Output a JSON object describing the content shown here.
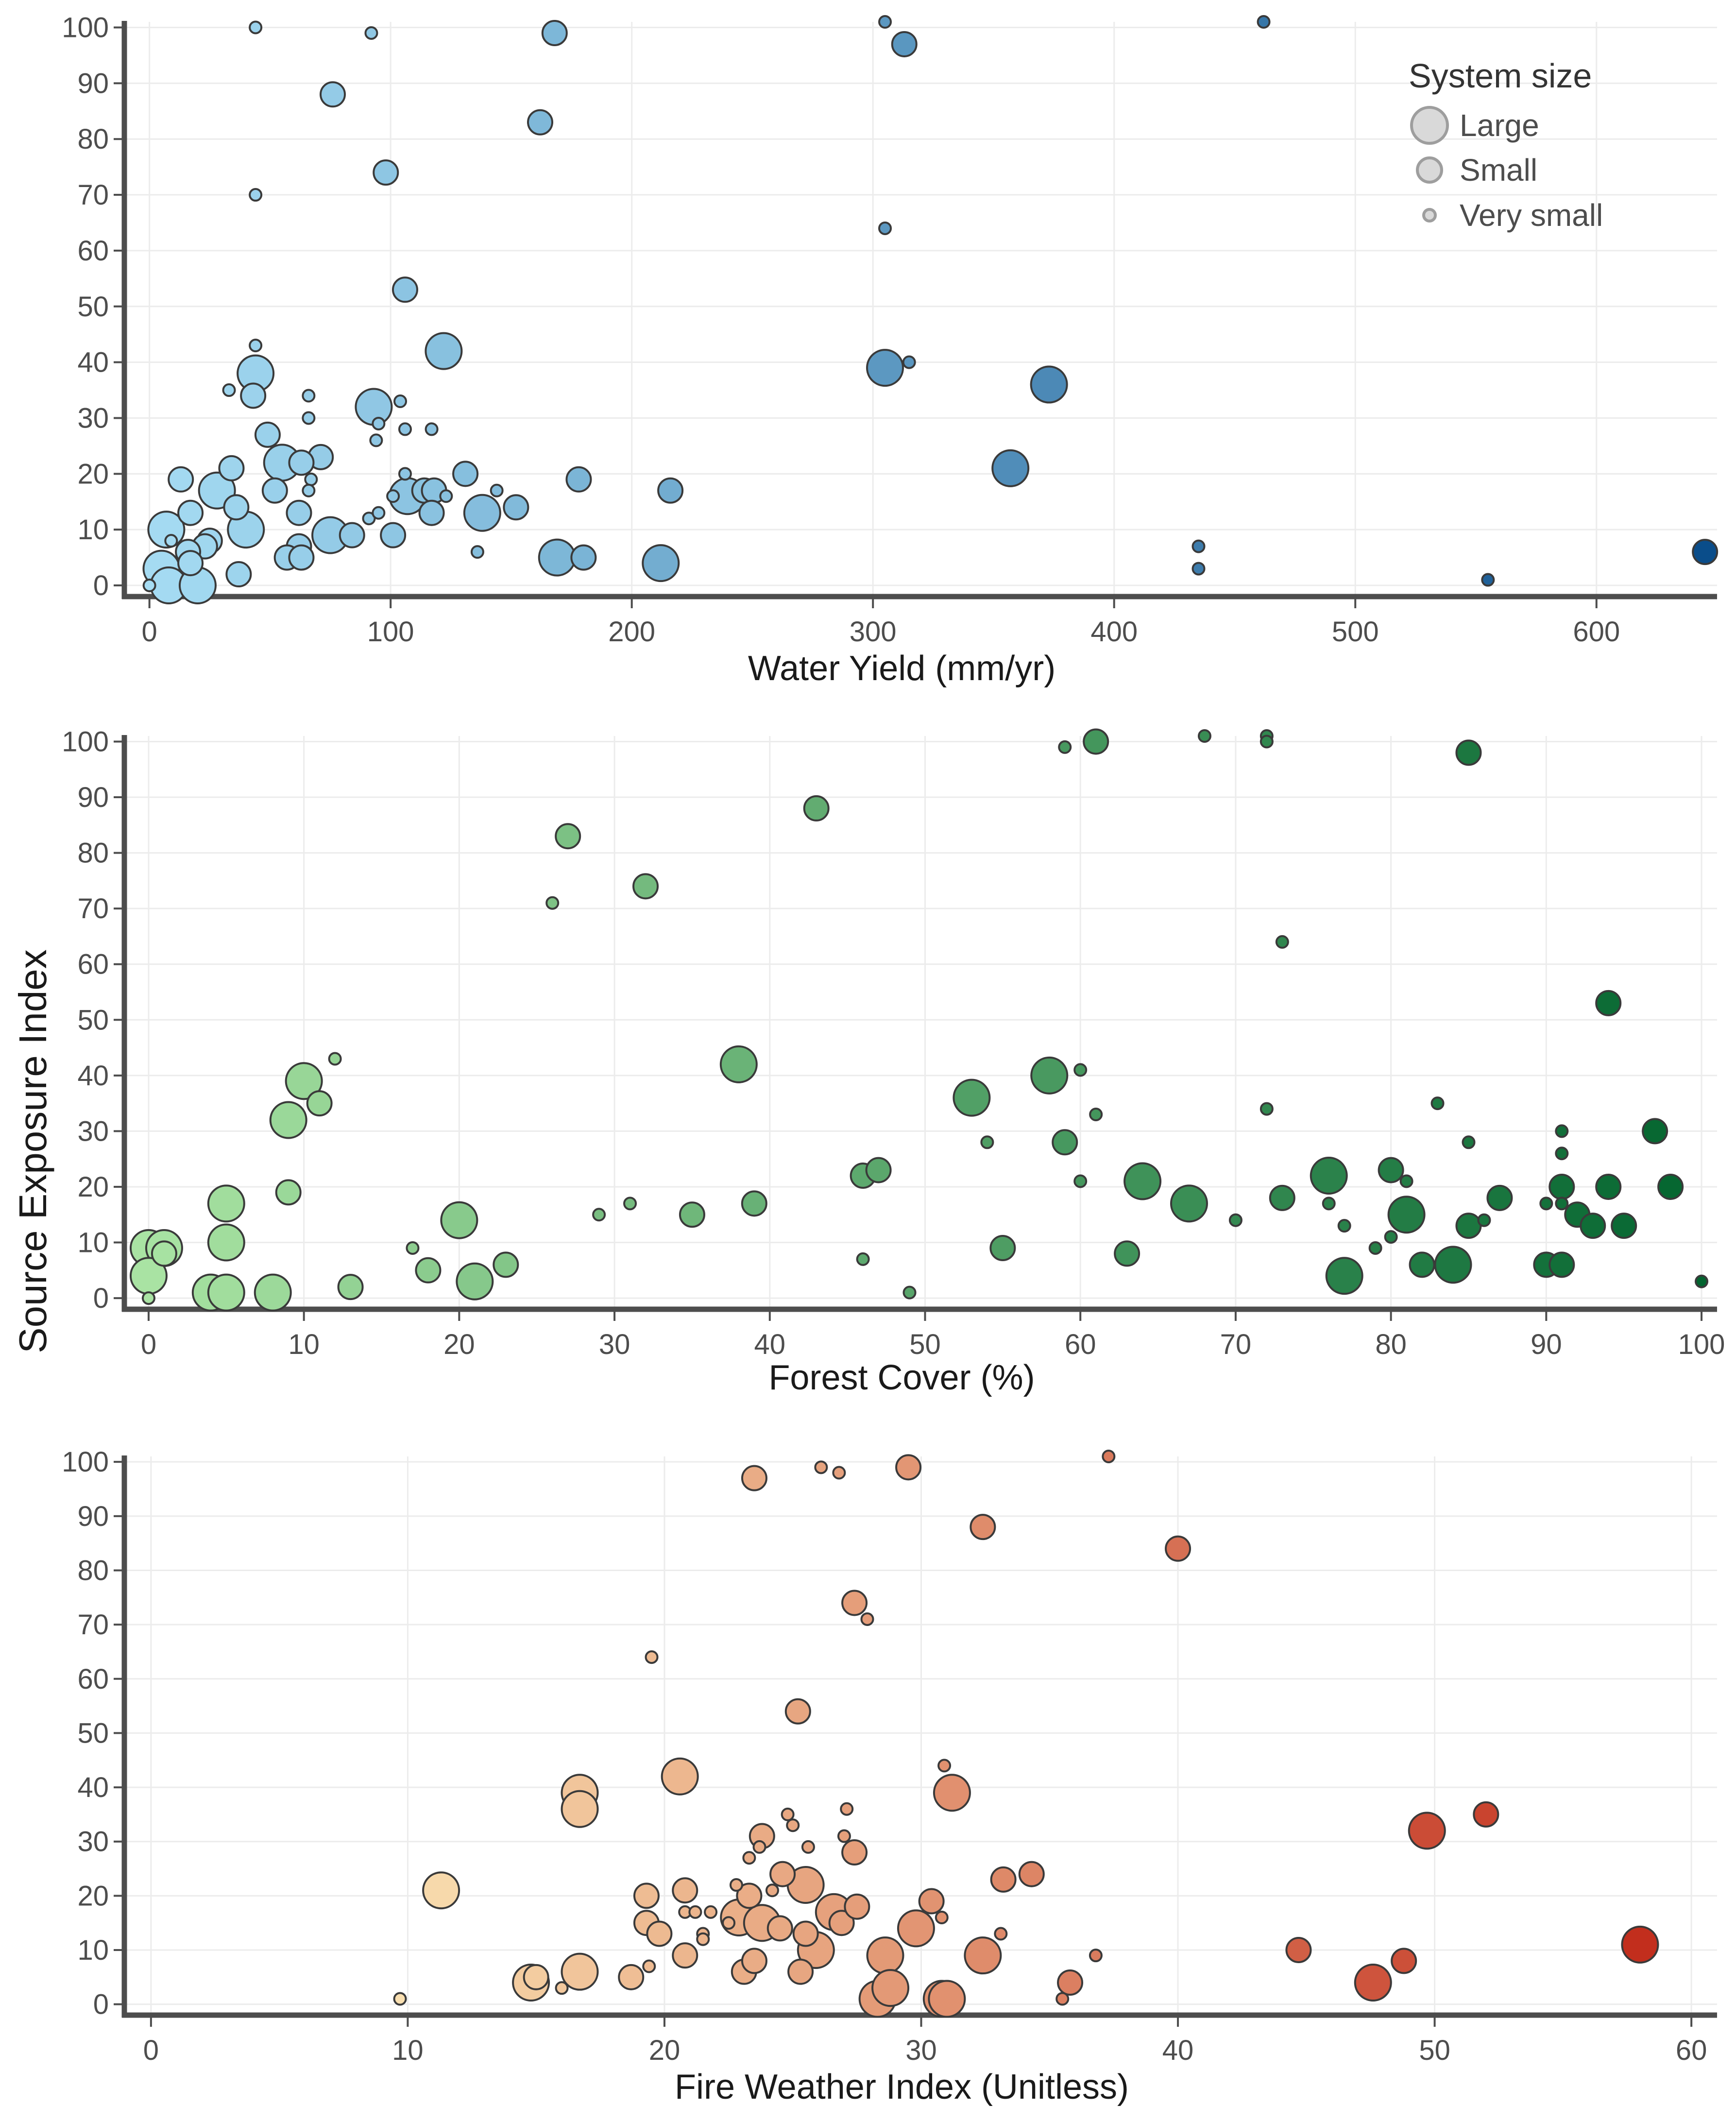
{
  "y_axis_label": "Source Exposure Index",
  "legend": {
    "title": "System size",
    "items": [
      {
        "label": "Large",
        "size": "L"
      },
      {
        "label": "Small",
        "size": "S"
      },
      {
        "label": "Very small",
        "size": "V"
      }
    ],
    "fill": "#d9d9d9",
    "stroke": "#9e9e9e"
  },
  "chart_data": [
    {
      "type": "scatter",
      "title": "",
      "xlabel": "Water Yield (mm/yr)",
      "ylabel": "Source Exposure Index",
      "xlim": [
        -10,
        650
      ],
      "ylim": [
        -2,
        101
      ],
      "xticks": [
        0,
        100,
        200,
        300,
        400,
        500,
        600
      ],
      "yticks": [
        0,
        10,
        20,
        30,
        40,
        50,
        60,
        70,
        80,
        90,
        100
      ],
      "color_scale": {
        "low": "#a6dcf3",
        "high": "#0a4d8a",
        "by": "x"
      },
      "points": [
        [
          44,
          100,
          "V"
        ],
        [
          92,
          99,
          "V"
        ],
        [
          168,
          99,
          "S"
        ],
        [
          76,
          88,
          "S"
        ],
        [
          162,
          83,
          "S"
        ],
        [
          98,
          74,
          "S"
        ],
        [
          44,
          70,
          "V"
        ],
        [
          106,
          53,
          "S"
        ],
        [
          44,
          43,
          "V"
        ],
        [
          122,
          42,
          "L"
        ],
        [
          44,
          38,
          "L"
        ],
        [
          66,
          34,
          "V"
        ],
        [
          43,
          34,
          "S"
        ],
        [
          33,
          35,
          "V"
        ],
        [
          93,
          32,
          "L"
        ],
        [
          104,
          33,
          "V"
        ],
        [
          66,
          30,
          "V"
        ],
        [
          95,
          29,
          "V"
        ],
        [
          49,
          27,
          "S"
        ],
        [
          106,
          28,
          "V"
        ],
        [
          117,
          28,
          "V"
        ],
        [
          94,
          26,
          "V"
        ],
        [
          71,
          23,
          "S"
        ],
        [
          63,
          22,
          "S"
        ],
        [
          55,
          22,
          "L"
        ],
        [
          34,
          21,
          "S"
        ],
        [
          106,
          20,
          "V"
        ],
        [
          131,
          20,
          "S"
        ],
        [
          13,
          19,
          "S"
        ],
        [
          67,
          19,
          "V"
        ],
        [
          178,
          19,
          "S"
        ],
        [
          28,
          17,
          "L"
        ],
        [
          52,
          17,
          "S"
        ],
        [
          66,
          17,
          "V"
        ],
        [
          101,
          16,
          "V"
        ],
        [
          107,
          16,
          "L"
        ],
        [
          114,
          17,
          "S"
        ],
        [
          118,
          17,
          "S"
        ],
        [
          123,
          16,
          "V"
        ],
        [
          144,
          17,
          "V"
        ],
        [
          216,
          17,
          "S"
        ],
        [
          36,
          14,
          "S"
        ],
        [
          17,
          13,
          "S"
        ],
        [
          62,
          13,
          "S"
        ],
        [
          91,
          12,
          "V"
        ],
        [
          95,
          13,
          "V"
        ],
        [
          117,
          13,
          "S"
        ],
        [
          138,
          13,
          "L"
        ],
        [
          152,
          14,
          "S"
        ],
        [
          7,
          10,
          "L"
        ],
        [
          40,
          10,
          "L"
        ],
        [
          25,
          8,
          "S"
        ],
        [
          23,
          7,
          "S"
        ],
        [
          62,
          7,
          "S"
        ],
        [
          75,
          9,
          "L"
        ],
        [
          84,
          9,
          "S"
        ],
        [
          101,
          9,
          "S"
        ],
        [
          16,
          6,
          "S"
        ],
        [
          9,
          8,
          "V"
        ],
        [
          57,
          5,
          "S"
        ],
        [
          63,
          5,
          "S"
        ],
        [
          136,
          6,
          "V"
        ],
        [
          169,
          5,
          "L"
        ],
        [
          180,
          5,
          "S"
        ],
        [
          17,
          4,
          "S"
        ],
        [
          5,
          3,
          "L"
        ],
        [
          212,
          4,
          "L"
        ],
        [
          37,
          2,
          "S"
        ],
        [
          0,
          0,
          "V"
        ],
        [
          8,
          0,
          "L"
        ],
        [
          20,
          0,
          "L"
        ],
        [
          305,
          101,
          "V"
        ],
        [
          313,
          97,
          "S"
        ],
        [
          305,
          64,
          "V"
        ],
        [
          305,
          39,
          "L"
        ],
        [
          315,
          40,
          "V"
        ],
        [
          373,
          36,
          "L"
        ],
        [
          357,
          21,
          "L"
        ],
        [
          462,
          101,
          "V"
        ],
        [
          435,
          7,
          "V"
        ],
        [
          435,
          3,
          "V"
        ],
        [
          555,
          1,
          "V"
        ],
        [
          645,
          6,
          "S"
        ]
      ]
    },
    {
      "type": "scatter",
      "title": "",
      "xlabel": "Forest Cover (%)",
      "ylabel": "Source Exposure Index",
      "xlim": [
        -1.5,
        101
      ],
      "ylim": [
        -2,
        101
      ],
      "xticks": [
        0,
        10,
        20,
        30,
        40,
        50,
        60,
        70,
        80,
        90,
        100
      ],
      "yticks": [
        0,
        10,
        20,
        30,
        40,
        50,
        60,
        70,
        80,
        90,
        100
      ],
      "color_scale": {
        "low": "#a9e3a3",
        "high": "#03642f",
        "by": "x"
      },
      "points": [
        [
          0,
          9,
          "L"
        ],
        [
          1,
          9,
          "L"
        ],
        [
          1,
          8,
          "S"
        ],
        [
          0,
          4,
          "L"
        ],
        [
          0,
          0,
          "V"
        ],
        [
          4,
          1,
          "L"
        ],
        [
          5,
          1,
          "L"
        ],
        [
          8,
          1,
          "L"
        ],
        [
          5,
          17,
          "L"
        ],
        [
          5,
          10,
          "L"
        ],
        [
          9,
          19,
          "S"
        ],
        [
          9,
          32,
          "L"
        ],
        [
          10,
          39,
          "L"
        ],
        [
          11,
          35,
          "S"
        ],
        [
          12,
          43,
          "V"
        ],
        [
          13,
          2,
          "S"
        ],
        [
          17,
          9,
          "V"
        ],
        [
          18,
          5,
          "S"
        ],
        [
          20,
          14,
          "L"
        ],
        [
          21,
          3,
          "L"
        ],
        [
          23,
          6,
          "S"
        ],
        [
          26,
          71,
          "V"
        ],
        [
          27,
          83,
          "S"
        ],
        [
          29,
          15,
          "V"
        ],
        [
          31,
          17,
          "V"
        ],
        [
          32,
          74,
          "S"
        ],
        [
          35,
          15,
          "S"
        ],
        [
          38,
          42,
          "L"
        ],
        [
          39,
          17,
          "S"
        ],
        [
          43,
          88,
          "S"
        ],
        [
          46,
          22,
          "S"
        ],
        [
          46,
          7,
          "V"
        ],
        [
          47,
          23,
          "S"
        ],
        [
          49,
          1,
          "V"
        ],
        [
          53,
          36,
          "L"
        ],
        [
          54,
          28,
          "V"
        ],
        [
          55,
          9,
          "S"
        ],
        [
          58,
          40,
          "L"
        ],
        [
          59,
          28,
          "S"
        ],
        [
          59,
          99,
          "V"
        ],
        [
          60,
          41,
          "V"
        ],
        [
          60,
          21,
          "V"
        ],
        [
          61,
          100,
          "S"
        ],
        [
          61,
          33,
          "V"
        ],
        [
          63,
          8,
          "S"
        ],
        [
          64,
          21,
          "L"
        ],
        [
          67,
          17,
          "L"
        ],
        [
          68,
          101,
          "V"
        ],
        [
          70,
          14,
          "V"
        ],
        [
          72,
          101,
          "V"
        ],
        [
          72,
          100,
          "V"
        ],
        [
          72,
          34,
          "V"
        ],
        [
          73,
          64,
          "V"
        ],
        [
          73,
          18,
          "S"
        ],
        [
          76,
          22,
          "L"
        ],
        [
          76,
          17,
          "V"
        ],
        [
          77,
          13,
          "V"
        ],
        [
          77,
          4,
          "L"
        ],
        [
          79,
          9,
          "V"
        ],
        [
          80,
          11,
          "V"
        ],
        [
          80,
          23,
          "S"
        ],
        [
          81,
          21,
          "V"
        ],
        [
          81,
          15,
          "L"
        ],
        [
          82,
          6,
          "S"
        ],
        [
          83,
          35,
          "V"
        ],
        [
          84,
          6,
          "L"
        ],
        [
          85,
          98,
          "S"
        ],
        [
          85,
          28,
          "V"
        ],
        [
          85,
          13,
          "S"
        ],
        [
          86,
          14,
          "V"
        ],
        [
          87,
          18,
          "S"
        ],
        [
          90,
          17,
          "V"
        ],
        [
          90,
          6,
          "S"
        ],
        [
          91,
          30,
          "V"
        ],
        [
          91,
          26,
          "V"
        ],
        [
          91,
          20,
          "S"
        ],
        [
          91,
          17,
          "V"
        ],
        [
          91,
          6,
          "S"
        ],
        [
          92,
          15,
          "S"
        ],
        [
          93,
          13,
          "S"
        ],
        [
          94,
          53,
          "S"
        ],
        [
          94,
          20,
          "S"
        ],
        [
          95,
          13,
          "S"
        ],
        [
          97,
          30,
          "S"
        ],
        [
          98,
          20,
          "S"
        ],
        [
          100,
          3,
          "V"
        ]
      ]
    },
    {
      "type": "scatter",
      "title": "",
      "xlabel": "Fire Weather Index (Unitless)",
      "ylabel": "Source Exposure Index",
      "xlim": [
        -1,
        61
      ],
      "ylim": [
        -2,
        101
      ],
      "xticks": [
        0,
        10,
        20,
        30,
        40,
        50,
        60
      ],
      "yticks": [
        0,
        10,
        20,
        30,
        40,
        50,
        60,
        70,
        80,
        90,
        100
      ],
      "color_scale": {
        "low": "#f9dfb0",
        "high": "#c22e1d",
        "by": "x"
      },
      "points": [
        [
          9.7,
          1,
          "V"
        ],
        [
          11.3,
          21,
          "L"
        ],
        [
          15,
          5,
          "S"
        ],
        [
          14.8,
          4,
          "L"
        ],
        [
          16,
          3,
          "V"
        ],
        [
          16.7,
          6,
          "L"
        ],
        [
          16.7,
          39,
          "L"
        ],
        [
          16.7,
          36,
          "L"
        ],
        [
          18.7,
          5,
          "S"
        ],
        [
          19.3,
          20,
          "S"
        ],
        [
          19.3,
          15,
          "S"
        ],
        [
          19.5,
          64,
          "V"
        ],
        [
          19.8,
          13,
          "S"
        ],
        [
          19.4,
          7,
          "V"
        ],
        [
          20.6,
          42,
          "L"
        ],
        [
          20.8,
          21,
          "S"
        ],
        [
          20.8,
          9,
          "S"
        ],
        [
          20.8,
          17,
          "V"
        ],
        [
          21.2,
          17,
          "V"
        ],
        [
          21.5,
          13,
          "V"
        ],
        [
          21.5,
          12,
          "V"
        ],
        [
          21.8,
          17,
          "V"
        ],
        [
          22.5,
          15,
          "V"
        ],
        [
          22.8,
          22,
          "V"
        ],
        [
          22.9,
          16,
          "L"
        ],
        [
          23.1,
          6,
          "S"
        ],
        [
          23.3,
          20,
          "S"
        ],
        [
          23.3,
          27,
          "V"
        ],
        [
          23.5,
          97,
          "S"
        ],
        [
          23.5,
          8,
          "S"
        ],
        [
          23.7,
          29,
          "V"
        ],
        [
          23.8,
          31,
          "S"
        ],
        [
          23.8,
          15,
          "L"
        ],
        [
          24.2,
          21,
          "V"
        ],
        [
          24.5,
          14,
          "S"
        ],
        [
          24.6,
          24,
          "S"
        ],
        [
          24.8,
          35,
          "V"
        ],
        [
          25,
          33,
          "V"
        ],
        [
          25.2,
          54,
          "S"
        ],
        [
          25.3,
          6,
          "S"
        ],
        [
          25.5,
          13,
          "S"
        ],
        [
          25.5,
          22,
          "L"
        ],
        [
          25.6,
          29,
          "V"
        ],
        [
          25.9,
          10,
          "L"
        ],
        [
          26.1,
          99,
          "V"
        ],
        [
          26.6,
          17,
          "L"
        ],
        [
          26.8,
          98,
          "V"
        ],
        [
          26.9,
          15,
          "S"
        ],
        [
          27.1,
          36,
          "V"
        ],
        [
          27,
          31,
          "V"
        ],
        [
          27.4,
          28,
          "S"
        ],
        [
          27.4,
          74,
          "S"
        ],
        [
          27.5,
          18,
          "S"
        ],
        [
          27.9,
          71,
          "V"
        ],
        [
          28.3,
          1,
          "L"
        ],
        [
          28.6,
          9,
          "L"
        ],
        [
          28.8,
          3,
          "L"
        ],
        [
          29.5,
          99,
          "S"
        ],
        [
          29.8,
          14,
          "L"
        ],
        [
          30.4,
          19,
          "S"
        ],
        [
          30.8,
          16,
          "V"
        ],
        [
          30.8,
          1,
          "L"
        ],
        [
          31,
          1,
          "L"
        ],
        [
          30.9,
          44,
          "V"
        ],
        [
          31.2,
          39,
          "L"
        ],
        [
          32.4,
          9,
          "L"
        ],
        [
          32.4,
          88,
          "S"
        ],
        [
          33.2,
          23,
          "S"
        ],
        [
          33.1,
          13,
          "V"
        ],
        [
          34.3,
          24,
          "S"
        ],
        [
          35.5,
          1,
          "V"
        ],
        [
          35.8,
          4,
          "S"
        ],
        [
          36.8,
          9,
          "V"
        ],
        [
          37.3,
          101,
          "V"
        ],
        [
          40,
          84,
          "S"
        ],
        [
          44.7,
          10,
          "S"
        ],
        [
          47.6,
          4,
          "L"
        ],
        [
          48.8,
          8,
          "S"
        ],
        [
          49.7,
          32,
          "L"
        ],
        [
          52,
          35,
          "S"
        ],
        [
          58,
          11,
          "L"
        ]
      ]
    }
  ]
}
